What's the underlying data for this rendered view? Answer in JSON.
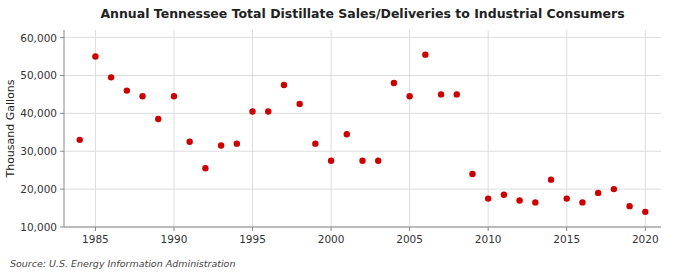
{
  "chart_data": {
    "type": "scatter",
    "title": "Annual Tennessee Total Distillate Sales/Deliveries to Industrial Consumers",
    "ylabel": "Thousand Gallons",
    "source": "Source: U.S. Energy Information Administration",
    "x": [
      1984,
      1985,
      1986,
      1987,
      1988,
      1989,
      1990,
      1991,
      1992,
      1993,
      1994,
      1995,
      1996,
      1997,
      1998,
      1999,
      2000,
      2001,
      2002,
      2003,
      2004,
      2005,
      2006,
      2007,
      2008,
      2009,
      2010,
      2011,
      2012,
      2013,
      2014,
      2015,
      2016,
      2017,
      2018,
      2019,
      2020
    ],
    "values": [
      33000,
      55000,
      49500,
      46000,
      44500,
      38500,
      44500,
      32500,
      25500,
      31500,
      32000,
      40500,
      40500,
      47500,
      42500,
      32000,
      27500,
      34500,
      27500,
      27500,
      48000,
      44500,
      55500,
      45000,
      45000,
      24000,
      17500,
      18500,
      17000,
      16500,
      22500,
      17500,
      16500,
      19000,
      20000,
      15500,
      14000
    ],
    "color": "#CC0000",
    "xlim": [
      1983,
      2021
    ],
    "ylim": [
      10000,
      62000
    ],
    "xticks": [
      1985,
      1990,
      1995,
      2000,
      2005,
      2010,
      2015,
      2020
    ],
    "yticks": [
      {
        "value": 10000,
        "label": "10,000"
      },
      {
        "value": 20000,
        "label": "20,000"
      },
      {
        "value": 30000,
        "label": "30,000"
      },
      {
        "value": 40000,
        "label": "40,000"
      },
      {
        "value": 50000,
        "label": "50,000"
      },
      {
        "value": 60000,
        "label": "60,000"
      }
    ],
    "grid": true
  }
}
